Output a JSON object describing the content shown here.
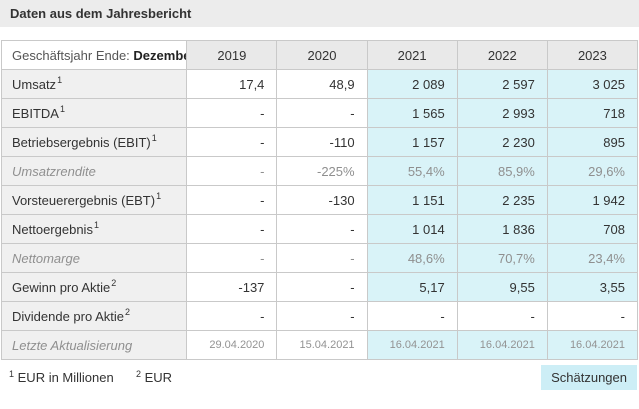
{
  "title": "Daten aus dem Jahresbericht",
  "table": {
    "header": {
      "label_normal": "Geschäftsjahr Ende: ",
      "label_bold": "Dezember",
      "years": [
        "2019",
        "2020",
        "2021",
        "2022",
        "2023"
      ]
    },
    "rows": [
      {
        "label": "Umsatz",
        "sup": "1",
        "values": [
          "17,4",
          "48,9",
          "2 089",
          "2 597",
          "3 025"
        ]
      },
      {
        "label": "EBITDA",
        "sup": "1",
        "values": [
          "-",
          "-",
          "1 565",
          "2 993",
          "718"
        ]
      },
      {
        "label": "Betriebsergebnis (EBIT)",
        "sup": "1",
        "values": [
          "-",
          "-110",
          "1 157",
          "2 230",
          "895"
        ]
      },
      {
        "label": "Umsatzrendite",
        "sup": "",
        "values": [
          "-",
          "-225%",
          "55,4%",
          "85,9%",
          "29,6%"
        ]
      },
      {
        "label": "Vorsteuerergebnis (EBT)",
        "sup": "1",
        "values": [
          "-",
          "-130",
          "1 151",
          "2 235",
          "1 942"
        ]
      },
      {
        "label": "Nettoergebnis",
        "sup": "1",
        "values": [
          "-",
          "-",
          "1 014",
          "1 836",
          "708"
        ]
      },
      {
        "label": "Nettomarge",
        "sup": "",
        "values": [
          "-",
          "-",
          "48,6%",
          "70,7%",
          "23,4%"
        ]
      },
      {
        "label": "Gewinn pro Aktie",
        "sup": "2",
        "values": [
          "-137",
          "-",
          "5,17",
          "9,55",
          "3,55"
        ]
      },
      {
        "label": "Dividende pro Aktie",
        "sup": "2",
        "values": [
          "-",
          "-",
          "-",
          "-",
          "-"
        ]
      },
      {
        "label": "Letzte Aktualisierung",
        "sup": "",
        "values": [
          "29.04.2020",
          "15.04.2021",
          "16.04.2021",
          "16.04.2021",
          "16.04.2021"
        ]
      }
    ]
  },
  "footer": {
    "note1_sup": "1",
    "note1_text": "EUR in Millionen",
    "note2_sup": "2",
    "note2_text": "EUR",
    "button_label": "Schätzungen"
  },
  "colors": {
    "highlight": "#d9f3f8",
    "button_bg": "#cdeef6",
    "header_bg": "#e9e9e9",
    "label_bg": "#f0f0f0",
    "title_bg": "#ececec",
    "border": "#c9c9c9"
  }
}
